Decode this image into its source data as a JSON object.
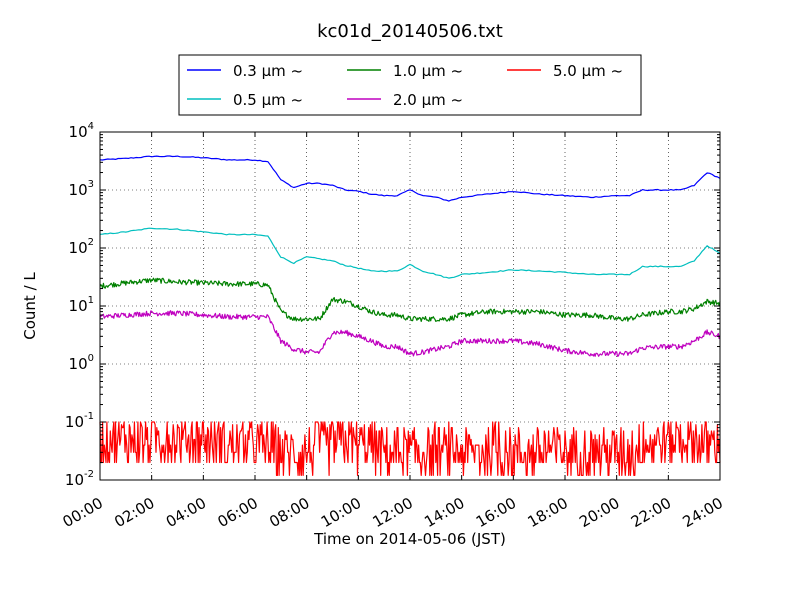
{
  "chart_data": {
    "type": "line",
    "title": "kc01d_20140506.txt",
    "xlabel": "Time on 2014-05-06 (JST)",
    "ylabel": "Count / L",
    "yscale": "log",
    "xlim": [
      "00:00",
      "24:00"
    ],
    "ylim": [
      0.01,
      10000
    ],
    "grid": true,
    "legend_placement": "top-center, outside plot",
    "x_ticks": [
      "00:00",
      "02:00",
      "04:00",
      "06:00",
      "08:00",
      "10:00",
      "12:00",
      "14:00",
      "16:00",
      "18:00",
      "20:00",
      "22:00",
      "24:00"
    ],
    "y_ticks": [
      {
        "base": "10",
        "exp": "-2",
        "value": 0.01
      },
      {
        "base": "10",
        "exp": "-1",
        "value": 0.1
      },
      {
        "base": "10",
        "exp": "0",
        "value": 1
      },
      {
        "base": "10",
        "exp": "1",
        "value": 10
      },
      {
        "base": "10",
        "exp": "2",
        "value": 100
      },
      {
        "base": "10",
        "exp": "3",
        "value": 1000
      },
      {
        "base": "10",
        "exp": "4",
        "value": 10000
      }
    ],
    "x": [
      "00:00",
      "01:00",
      "02:00",
      "03:00",
      "04:00",
      "05:00",
      "06:00",
      "06:30",
      "07:00",
      "07:30",
      "08:00",
      "08:30",
      "09:00",
      "09:30",
      "10:00",
      "10:30",
      "11:00",
      "11:30",
      "12:00",
      "12:30",
      "13:00",
      "13:30",
      "14:00",
      "15:00",
      "16:00",
      "17:00",
      "18:00",
      "19:00",
      "20:00",
      "20:30",
      "21:00",
      "22:00",
      "22:30",
      "23:00",
      "23:30",
      "24:00"
    ],
    "series": [
      {
        "name": "0.3 μm ~",
        "color": "#0000ff",
        "noisy": false,
        "values": [
          3300,
          3500,
          3800,
          3800,
          3600,
          3300,
          3300,
          3100,
          1500,
          1100,
          1300,
          1300,
          1200,
          1000,
          950,
          850,
          800,
          800,
          1000,
          800,
          750,
          650,
          750,
          850,
          950,
          850,
          800,
          750,
          800,
          800,
          1000,
          1000,
          1000,
          1200,
          2000,
          1600
        ]
      },
      {
        "name": "0.5 μm ~",
        "color": "#00bfbf",
        "noisy": false,
        "values": [
          170,
          190,
          220,
          210,
          190,
          170,
          170,
          160,
          70,
          55,
          70,
          65,
          60,
          50,
          45,
          40,
          40,
          40,
          52,
          40,
          35,
          30,
          35,
          38,
          42,
          40,
          38,
          35,
          35,
          35,
          48,
          48,
          48,
          60,
          110,
          80
        ]
      },
      {
        "name": "1.0 μm ~",
        "color": "#008000",
        "noisy": true,
        "values": [
          22,
          25,
          28,
          26,
          25,
          24,
          24,
          23,
          8,
          6,
          6,
          6,
          13,
          12,
          10,
          8,
          7,
          7,
          6,
          6,
          6,
          6,
          7,
          8,
          8,
          8,
          7,
          7,
          6,
          6,
          7,
          8,
          8,
          9,
          12,
          11
        ]
      },
      {
        "name": "2.0 μm ~",
        "color": "#bf00bf",
        "noisy": true,
        "values": [
          6.5,
          7,
          7.5,
          7.5,
          7,
          6.5,
          6.5,
          6.5,
          2.5,
          1.8,
          1.6,
          1.6,
          3.5,
          3.5,
          3,
          2.5,
          2,
          2,
          1.5,
          1.6,
          1.8,
          2,
          2.5,
          2.5,
          2.5,
          2.2,
          1.7,
          1.5,
          1.5,
          1.5,
          1.9,
          2,
          2,
          2.5,
          3.5,
          3
        ]
      },
      {
        "name": "5.0 μm ~",
        "color": "#ff0000",
        "noisy": true,
        "spiky": true,
        "values": [
          0.05,
          0.05,
          0.05,
          0.05,
          0.05,
          0.04,
          0.04,
          0.04,
          0.03,
          0.03,
          0.03,
          0.04,
          0.04,
          0.05,
          0.04,
          0.04,
          0.03,
          0.03,
          0.03,
          0.03,
          0.03,
          0.03,
          0.03,
          0.03,
          0.03,
          0.03,
          0.03,
          0.03,
          0.03,
          0.03,
          0.04,
          0.05,
          0.05,
          0.05,
          0.04,
          0.04
        ]
      }
    ]
  }
}
